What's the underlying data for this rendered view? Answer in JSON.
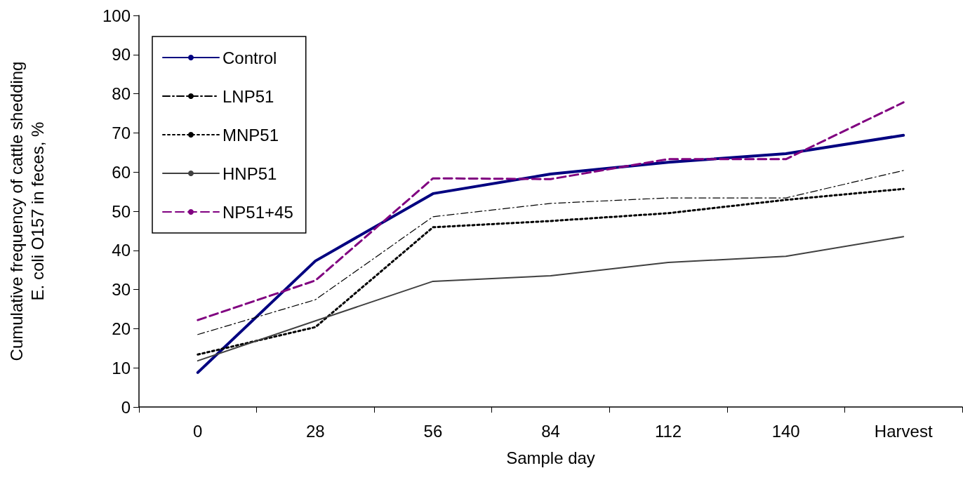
{
  "chart_data": {
    "type": "line",
    "xlabel": "Sample day",
    "ylabel": "Cumulative frequency of cattle shedding\nE. coli O157 in feces, %",
    "categories": [
      "0",
      "28",
      "56",
      "84",
      "112",
      "140",
      "Harvest"
    ],
    "series": [
      {
        "name": "Control",
        "color": "#000080",
        "line_style": "solid",
        "values": [
          8.8,
          37.3,
          54.5,
          59.5,
          62.5,
          64.7,
          69.4
        ]
      },
      {
        "name": "LNP51",
        "color": "#000000",
        "line_style": "dashdot",
        "values": [
          18.5,
          27.4,
          48.6,
          52,
          53.4,
          53.4,
          60.4
        ]
      },
      {
        "name": "MNP51",
        "color": "#000000",
        "line_style": "dotted",
        "values": [
          13.4,
          20.4,
          45.9,
          47.5,
          49.5,
          52.9,
          55.7
        ]
      },
      {
        "name": "HNP51",
        "color": "#404040",
        "line_style": "solid",
        "values": [
          11.8,
          22,
          32.1,
          33.5,
          36.9,
          38.5,
          43.5
        ]
      },
      {
        "name": "NP51+45",
        "color": "#800080",
        "line_style": "dashed",
        "values": [
          22.2,
          32.3,
          58.4,
          58.2,
          63.3,
          63.3,
          77.8
        ]
      }
    ],
    "ylim": [
      0,
      100
    ],
    "yticks": [
      0,
      10,
      20,
      30,
      40,
      50,
      60,
      70,
      80,
      90,
      100
    ],
    "grid": false,
    "legend": "top left",
    "marker": "none"
  }
}
